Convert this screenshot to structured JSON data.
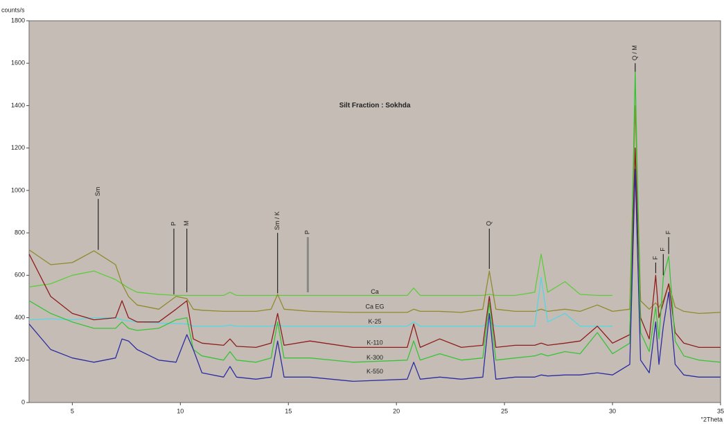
{
  "chart_data": {
    "type": "line",
    "title": "Silt Fraction : Sokhda",
    "title_pos": {
      "x": 19,
      "y": 1400
    },
    "y_label": "counts/s",
    "x_label": "°2Theta",
    "xlim": [
      3,
      35
    ],
    "ylim": [
      0,
      1800
    ],
    "xticks": [
      5,
      10,
      15,
      20,
      25,
      30,
      35
    ],
    "yticks": [
      0,
      200,
      400,
      600,
      800,
      1000,
      1200,
      1400,
      1600,
      1800
    ],
    "x": [
      3,
      4,
      5,
      6,
      7,
      7.3,
      7.6,
      8,
      9,
      9.8,
      10.3,
      10.6,
      11,
      12,
      12.3,
      12.6,
      13.5,
      14.2,
      14.5,
      14.8,
      16,
      18,
      20.5,
      20.8,
      21.1,
      22,
      23,
      24,
      24.3,
      24.6,
      25.5,
      26.4,
      26.7,
      27,
      27.8,
      28.5,
      29.3,
      30,
      30.8,
      31.05,
      31.3,
      31.7,
      32,
      32.15,
      32.35,
      32.6,
      32.9,
      33.3,
      34,
      35
    ],
    "series": [
      {
        "name": "Ca",
        "color": "#5ccc3a",
        "label_pos": [
          19,
          520
        ],
        "values": [
          545,
          560,
          600,
          620,
          580,
          560,
          540,
          520,
          510,
          505,
          505,
          505,
          505,
          505,
          520,
          505,
          505,
          505,
          505,
          505,
          505,
          505,
          505,
          540,
          505,
          505,
          505,
          505,
          510,
          505,
          505,
          520,
          700,
          520,
          570,
          510,
          505,
          505,
          null,
          null,
          null,
          null,
          null,
          null,
          null,
          null,
          null,
          null,
          null,
          null
        ]
      },
      {
        "name": "Ca EG",
        "color": "#8f8a2c",
        "label_pos": [
          19,
          450
        ],
        "values": [
          720,
          650,
          660,
          715,
          650,
          560,
          500,
          460,
          440,
          500,
          490,
          440,
          435,
          430,
          430,
          430,
          430,
          440,
          510,
          440,
          430,
          425,
          425,
          440,
          430,
          430,
          425,
          440,
          620,
          440,
          430,
          430,
          440,
          430,
          440,
          430,
          460,
          430,
          440,
          1400,
          480,
          440,
          470,
          450,
          480,
          560,
          450,
          430,
          420,
          425
        ]
      },
      {
        "name": "K-25",
        "color": "#55d6e2",
        "label_pos": [
          19,
          380
        ],
        "values": [
          390,
          395,
          390,
          400,
          400,
          390,
          385,
          380,
          375,
          372,
          370,
          360,
          360,
          360,
          365,
          360,
          360,
          360,
          365,
          360,
          360,
          360,
          360,
          380,
          360,
          360,
          360,
          360,
          380,
          360,
          360,
          360,
          590,
          380,
          420,
          360,
          360,
          360,
          null,
          null,
          null,
          null,
          null,
          null,
          null,
          null,
          null,
          null,
          null,
          null
        ]
      },
      {
        "name": "K-110",
        "color": "#8e1c1c",
        "label_pos": [
          19,
          280
        ],
        "values": [
          700,
          500,
          420,
          390,
          400,
          480,
          400,
          380,
          380,
          440,
          480,
          300,
          280,
          270,
          300,
          265,
          260,
          280,
          420,
          270,
          290,
          260,
          260,
          370,
          260,
          300,
          260,
          270,
          500,
          260,
          270,
          270,
          280,
          270,
          280,
          290,
          360,
          280,
          320,
          1200,
          400,
          300,
          600,
          400,
          470,
          560,
          330,
          280,
          260,
          260
        ]
      },
      {
        "name": "K-300",
        "color": "#36c436",
        "label_pos": [
          19,
          210
        ],
        "values": [
          480,
          420,
          380,
          350,
          350,
          380,
          350,
          340,
          350,
          390,
          400,
          250,
          220,
          200,
          240,
          200,
          190,
          210,
          380,
          210,
          210,
          190,
          200,
          290,
          200,
          230,
          200,
          210,
          470,
          200,
          210,
          220,
          230,
          220,
          240,
          230,
          330,
          230,
          280,
          1560,
          330,
          240,
          450,
          300,
          590,
          690,
          290,
          220,
          200,
          190
        ]
      },
      {
        "name": "K-550",
        "color": "#2b2ba2",
        "label_pos": [
          19,
          145
        ],
        "values": [
          370,
          250,
          210,
          190,
          210,
          300,
          290,
          250,
          200,
          190,
          320,
          250,
          140,
          120,
          170,
          120,
          110,
          120,
          290,
          120,
          120,
          100,
          110,
          190,
          110,
          120,
          110,
          120,
          420,
          110,
          120,
          120,
          130,
          125,
          130,
          130,
          140,
          130,
          180,
          1100,
          200,
          140,
          380,
          180,
          360,
          520,
          180,
          130,
          120,
          120
        ]
      }
    ],
    "annotations": [
      {
        "text": "Sm",
        "x": 6.2,
        "y_range": [
          720,
          960
        ]
      },
      {
        "text": "P",
        "x": 9.7,
        "y_range": [
          510,
          820
        ]
      },
      {
        "text": "M",
        "x": 10.3,
        "y_range": [
          520,
          820
        ]
      },
      {
        "text": "Sm / K",
        "x": 14.5,
        "y_range": [
          515,
          800
        ]
      },
      {
        "text": "P",
        "x": 15.9,
        "y_range": [
          520,
          780
        ]
      },
      {
        "text": "Q",
        "x": 24.3,
        "y_range": [
          630,
          820
        ]
      },
      {
        "text": "Q / M",
        "x": 31.05,
        "y_range": [
          1560,
          1600
        ]
      },
      {
        "text": "F",
        "x": 32.0,
        "y_range": [
          610,
          660
        ]
      },
      {
        "text": "F",
        "x": 32.35,
        "y_range": [
          600,
          700
        ]
      },
      {
        "text": "F",
        "x": 32.6,
        "y_range": [
          700,
          780
        ]
      }
    ]
  }
}
